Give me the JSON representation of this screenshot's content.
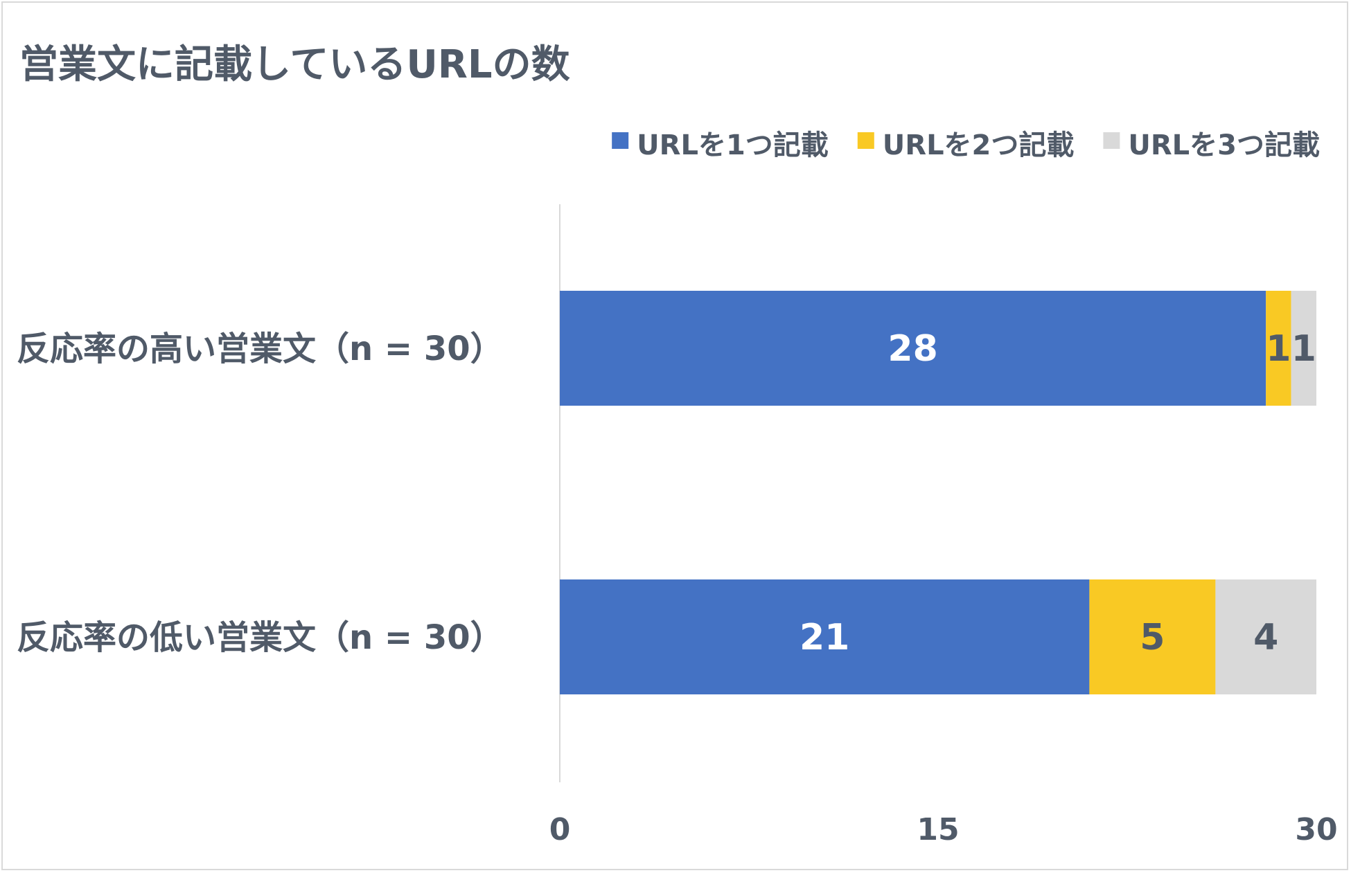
{
  "chart_data": {
    "type": "bar",
    "orientation": "horizontal",
    "stacked": true,
    "title": "営業文に記載しているURLの数",
    "categories": [
      "反応率の高い営業文（n = 30）",
      "反応率の低い営業文（n = 30）"
    ],
    "series": [
      {
        "name": "URLを1つ記載",
        "values": [
          28,
          21
        ],
        "color": "#4472c4",
        "label_color": "#ffffff"
      },
      {
        "name": "URLを2つ記載",
        "values": [
          1,
          5
        ],
        "color": "#f9c924",
        "label_color": "#505a68"
      },
      {
        "name": "URLを3つ記載",
        "values": [
          1,
          4
        ],
        "color": "#d9d9d9",
        "label_color": "#505a68"
      }
    ],
    "xlim": [
      0,
      30
    ],
    "xticks": [
      0,
      15,
      30
    ],
    "legend_position": "top-right",
    "grid": false
  }
}
